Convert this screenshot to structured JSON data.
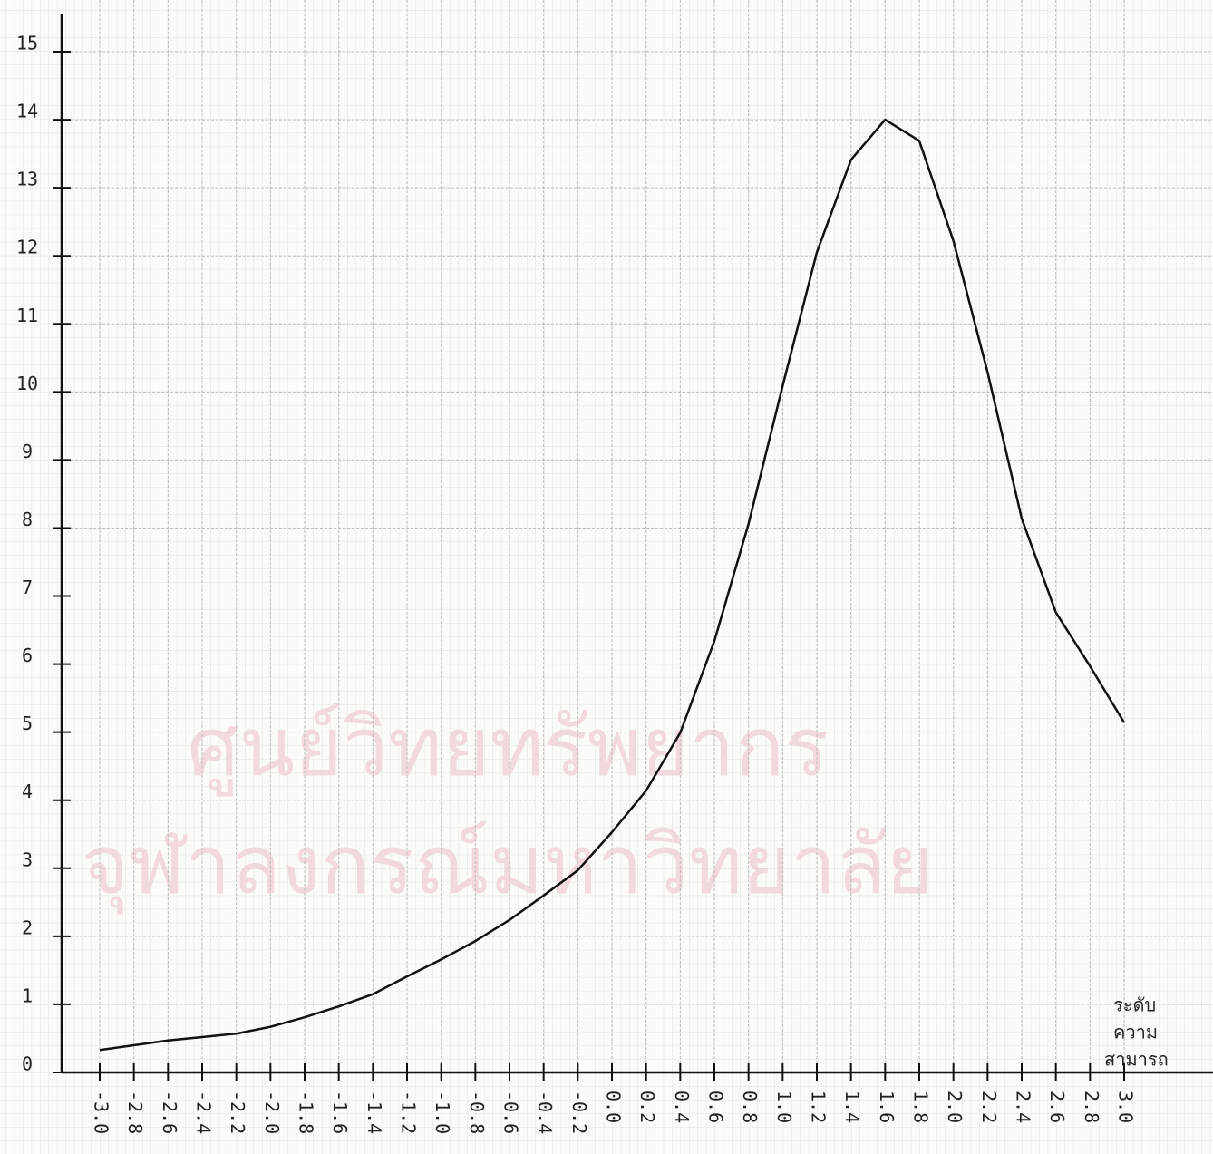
{
  "chart_data": {
    "type": "line",
    "x_label": [
      "ระดับ",
      "ความ",
      "สามารถ"
    ],
    "watermark": [
      "ศูนย์วิทยทรัพยากร",
      "จุฬาลงกรณ์มหาวิทยาลัย"
    ],
    "x": [
      -3.0,
      -2.8,
      -2.6,
      -2.4,
      -2.2,
      -2.0,
      -1.8,
      -1.6,
      -1.4,
      -1.2,
      -1.0,
      -0.8,
      -0.6,
      -0.4,
      -0.2,
      0.0,
      0.2,
      0.4,
      0.6,
      0.8,
      1.0,
      1.2,
      1.4,
      1.6,
      1.8,
      2.0,
      2.2,
      2.4,
      2.6,
      2.8,
      3.0
    ],
    "values": [
      0.33,
      0.4,
      0.47,
      0.52,
      0.57,
      0.67,
      0.81,
      0.97,
      1.15,
      1.41,
      1.66,
      1.93,
      2.24,
      2.6,
      2.97,
      3.53,
      4.14,
      4.99,
      6.34,
      8.06,
      10.09,
      12.05,
      13.41,
      14.0,
      13.69,
      12.22,
      10.29,
      8.14,
      6.76,
      5.97,
      5.14
    ],
    "color": "#111111",
    "xlim": [
      -3.0,
      3.0
    ],
    "xticks": [
      {
        "value": -3,
        "label": "-3.0"
      },
      -2.8,
      -2.6,
      -2.4,
      -2.2,
      {
        "value": -2,
        "label": "-2.0"
      },
      -1.8,
      -1.6,
      -1.4,
      -1.2,
      {
        "value": -1,
        "label": "-1.0"
      },
      -0.8,
      -0.6,
      -0.4,
      -0.2,
      {
        "value": 0,
        "label": "0.0"
      },
      0.2,
      0.4,
      0.6,
      0.8,
      {
        "value": 1,
        "label": "1.0"
      },
      1.2,
      1.4,
      1.6,
      1.8,
      {
        "value": 2,
        "label": "2.0"
      },
      2.2,
      2.4,
      2.6,
      2.8,
      {
        "value": 3,
        "label": "3.0"
      }
    ],
    "ylim": [
      0,
      15
    ],
    "yticks": [
      0,
      1,
      2,
      3,
      4,
      5,
      6,
      7,
      8,
      9,
      10,
      11,
      12,
      13,
      14,
      15
    ],
    "grid": true
  }
}
